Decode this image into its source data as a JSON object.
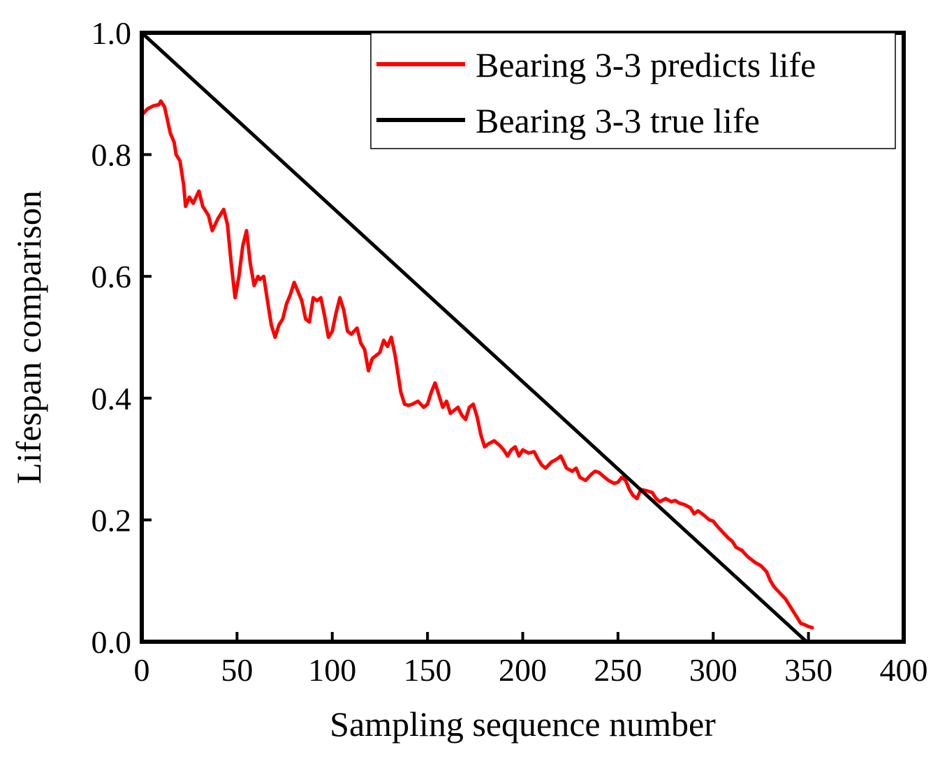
{
  "chart_data": {
    "type": "line",
    "title": "",
    "xlabel": "Sampling sequence number",
    "ylabel": "Lifespan comparison",
    "xlim": [
      0,
      400
    ],
    "ylim": [
      0,
      1.0
    ],
    "xticks": [
      0,
      50,
      100,
      150,
      200,
      250,
      300,
      350,
      400
    ],
    "xtick_labels": [
      "0",
      "50",
      "100",
      "150",
      "200",
      "250",
      "300",
      "350",
      "400"
    ],
    "yticks": [
      0,
      0.2,
      0.4,
      0.6,
      0.8,
      1.0
    ],
    "ytick_labels": [
      "0.0",
      "0.2",
      "0.4",
      "0.6",
      "0.8",
      "1.0"
    ],
    "grid": false,
    "legend_position": "top-right",
    "series": [
      {
        "name": "Bearing 3-3 predicts life",
        "color": "#ff0000",
        "x": [
          0,
          3,
          6,
          9,
          10,
          12,
          15,
          17,
          18,
          20,
          22,
          23,
          25,
          27,
          30,
          32,
          35,
          37,
          40,
          43,
          45,
          47,
          49,
          51,
          53,
          55,
          57,
          59,
          61,
          62,
          64,
          66,
          68,
          70,
          72,
          74,
          76,
          78,
          80,
          82,
          84,
          86,
          88,
          90,
          92,
          94,
          96,
          98,
          100,
          102,
          104,
          106,
          108,
          110,
          113,
          115,
          117,
          119,
          121,
          123,
          125,
          127,
          129,
          131,
          133,
          134,
          136,
          138,
          140,
          142,
          145,
          148,
          150,
          152,
          154,
          156,
          158,
          160,
          162,
          164,
          166,
          168,
          170,
          172,
          174,
          176,
          178,
          180,
          182,
          185,
          188,
          190,
          192,
          194,
          196,
          198,
          200,
          203,
          206,
          208,
          210,
          212,
          215,
          218,
          220,
          223,
          226,
          228,
          230,
          233,
          236,
          238,
          240,
          243,
          245,
          248,
          250,
          252,
          254,
          256,
          258,
          260,
          262,
          265,
          268,
          270,
          272,
          275,
          278,
          280,
          282,
          285,
          288,
          290,
          292,
          295,
          298,
          300,
          302,
          305,
          308,
          310,
          312,
          315,
          318,
          320,
          322,
          325,
          328,
          330,
          332,
          335,
          338,
          340,
          342,
          344,
          346,
          348,
          350,
          352
        ],
        "y": [
          0.865,
          0.875,
          0.88,
          0.882,
          0.888,
          0.878,
          0.835,
          0.82,
          0.8,
          0.79,
          0.75,
          0.715,
          0.73,
          0.72,
          0.74,
          0.715,
          0.7,
          0.675,
          0.695,
          0.71,
          0.685,
          0.62,
          0.565,
          0.6,
          0.65,
          0.675,
          0.62,
          0.585,
          0.6,
          0.595,
          0.6,
          0.56,
          0.52,
          0.5,
          0.52,
          0.53,
          0.555,
          0.57,
          0.59,
          0.575,
          0.56,
          0.53,
          0.525,
          0.565,
          0.56,
          0.565,
          0.535,
          0.5,
          0.51,
          0.54,
          0.565,
          0.545,
          0.51,
          0.505,
          0.515,
          0.49,
          0.48,
          0.445,
          0.465,
          0.47,
          0.475,
          0.495,
          0.485,
          0.5,
          0.47,
          0.45,
          0.41,
          0.39,
          0.388,
          0.39,
          0.395,
          0.385,
          0.39,
          0.41,
          0.425,
          0.405,
          0.385,
          0.395,
          0.375,
          0.38,
          0.385,
          0.372,
          0.365,
          0.385,
          0.39,
          0.37,
          0.34,
          0.32,
          0.325,
          0.33,
          0.322,
          0.315,
          0.305,
          0.315,
          0.32,
          0.305,
          0.315,
          0.31,
          0.312,
          0.3,
          0.29,
          0.285,
          0.295,
          0.3,
          0.305,
          0.285,
          0.28,
          0.285,
          0.27,
          0.265,
          0.275,
          0.28,
          0.278,
          0.27,
          0.265,
          0.26,
          0.262,
          0.27,
          0.265,
          0.25,
          0.24,
          0.235,
          0.25,
          0.248,
          0.245,
          0.235,
          0.23,
          0.235,
          0.23,
          0.232,
          0.228,
          0.225,
          0.22,
          0.21,
          0.215,
          0.208,
          0.2,
          0.198,
          0.19,
          0.18,
          0.17,
          0.165,
          0.155,
          0.15,
          0.14,
          0.135,
          0.13,
          0.125,
          0.115,
          0.1,
          0.09,
          0.08,
          0.07,
          0.06,
          0.05,
          0.04,
          0.03,
          0.028,
          0.025,
          0.023
        ]
      },
      {
        "name": "Bearing 3-3 true life",
        "color": "#000000",
        "x": [
          0,
          349
        ],
        "y": [
          1.0,
          0.0
        ]
      }
    ]
  }
}
